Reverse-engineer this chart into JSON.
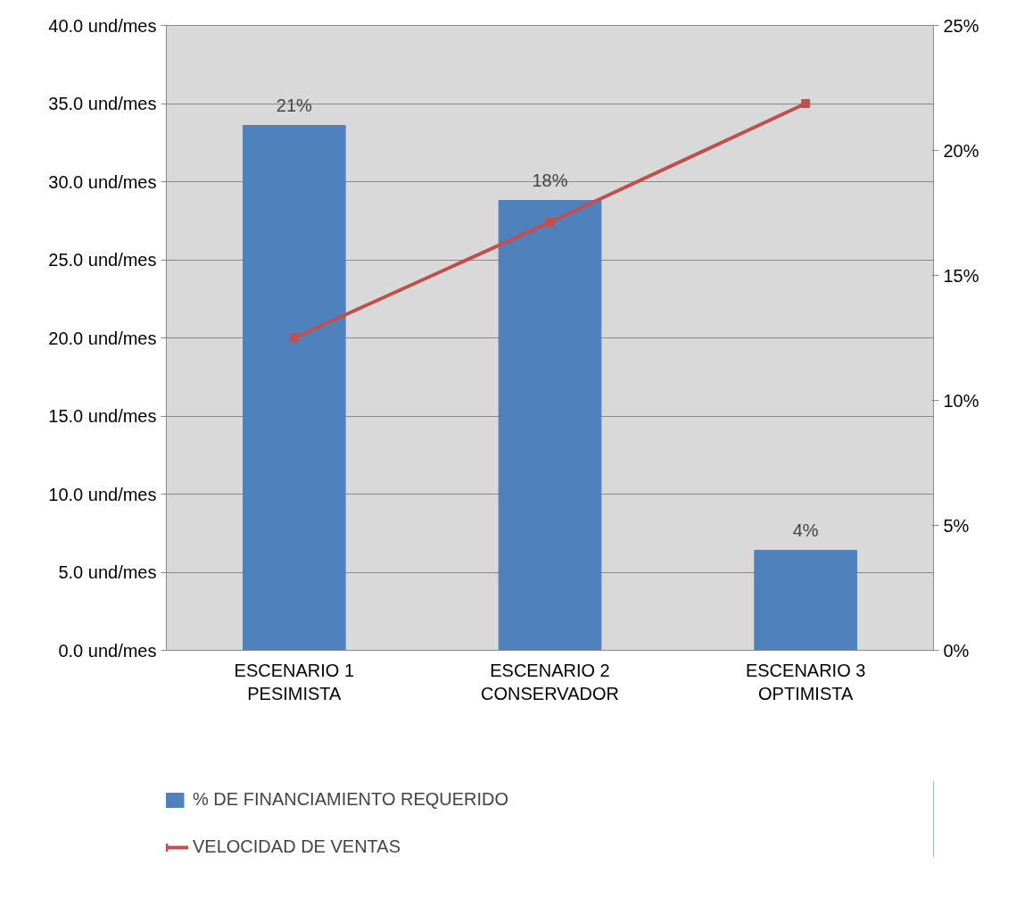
{
  "chart_data": {
    "type": "bar",
    "categories": [
      "ESCENARIO 1\nPESIMISTA",
      "ESCENARIO 2\nCONSERVADOR",
      "ESCENARIO 3\nOPTIMISTA"
    ],
    "series": [
      {
        "name": "% DE FINANCIAMIENTO REQUERIDO",
        "axis": "y2",
        "color": "#4f81bd",
        "values": [
          21,
          18,
          4
        ],
        "value_labels": [
          "21%",
          "18%",
          "4%"
        ]
      },
      {
        "name": "VELOCIDAD DE VENTAS",
        "type": "line",
        "axis": "y",
        "color": "#c0504d",
        "marker": "square",
        "values": [
          20.0,
          27.4,
          35.0
        ]
      }
    ],
    "ylim": [
      0,
      40
    ],
    "yticks": [
      {
        "value": 0,
        "label": "0.0 und/mes"
      },
      {
        "value": 5,
        "label": "5.0 und/mes"
      },
      {
        "value": 10,
        "label": "10.0 und/mes"
      },
      {
        "value": 15,
        "label": "15.0 und/mes"
      },
      {
        "value": 20,
        "label": "20.0 und/mes"
      },
      {
        "value": 25,
        "label": "25.0 und/mes"
      },
      {
        "value": 30,
        "label": "30.0 und/mes"
      },
      {
        "value": 35,
        "label": "35.0 und/mes"
      },
      {
        "value": 40,
        "label": "40.0 und/mes"
      }
    ],
    "y2lim": [
      0,
      25
    ],
    "y2ticks": [
      {
        "value": 0,
        "label": "0%"
      },
      {
        "value": 5,
        "label": "5%"
      },
      {
        "value": 10,
        "label": "10%"
      },
      {
        "value": 15,
        "label": "15%"
      },
      {
        "value": 20,
        "label": "20%"
      },
      {
        "value": 25,
        "label": "25%"
      }
    ],
    "grid": "y",
    "legend": "bottom"
  }
}
